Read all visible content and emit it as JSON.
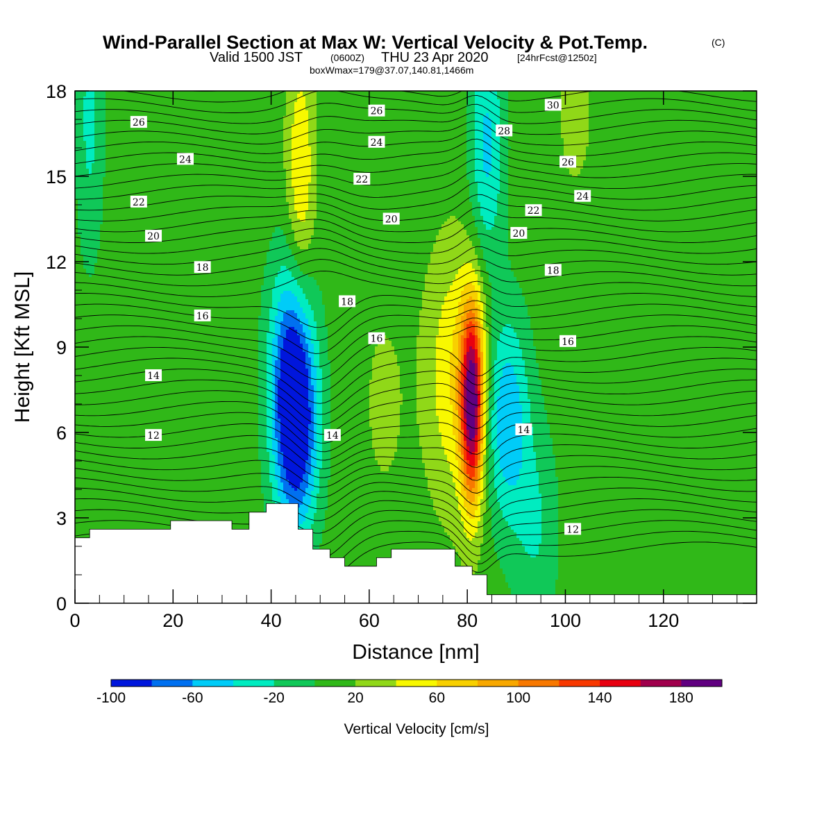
{
  "title": {
    "main": "Wind-Parallel Section at Max W: Vertical Velocity & Pot.Temp.",
    "copyright": "(C)",
    "valid_prefix": "Valid 1500 JST",
    "valid_utc": "(0600Z)",
    "valid_date": "THU 23 Apr 2020",
    "forecast": "[24hrFcst@1250z]",
    "boxwmax": "boxWmax=179@37.07,140.81,1466m"
  },
  "colorbar": {
    "label": "Vertical Velocity [cm/s]",
    "levels": [
      -100,
      -80,
      -60,
      -40,
      -20,
      0,
      20,
      40,
      60,
      80,
      100,
      120,
      140,
      160,
      180,
      200
    ],
    "tick_labels": [
      "-100",
      "-60",
      "-20",
      "20",
      "60",
      "100",
      "140",
      "180"
    ],
    "colors": [
      "#0016dc",
      "#0070f0",
      "#00ccf8",
      "#00ecc0",
      "#10c858",
      "#30b818",
      "#90d818",
      "#f8f800",
      "#f8d000",
      "#f8a800",
      "#f87800",
      "#f83800",
      "#e80010",
      "#a0004c",
      "#600080"
    ]
  },
  "chart_data": {
    "type": "heatmap",
    "title": "Wind-Parallel Section at Max W: Vertical Velocity & Pot.Temp.",
    "xlabel": "Distance [nm]",
    "ylabel": "Height [Kft MSL]",
    "xlim": [
      0,
      139
    ],
    "ylim": [
      0,
      18
    ],
    "x_ticks": [
      0,
      20,
      40,
      60,
      80,
      100,
      120
    ],
    "y_ticks": [
      0,
      3,
      6,
      9,
      12,
      15,
      18
    ],
    "background_w": 10,
    "max_w": 179,
    "w_features": [
      {
        "kind": "updraft",
        "x": 81,
        "y": 7,
        "w": 179
      },
      {
        "kind": "updraft_plume",
        "x": 78,
        "y": 8,
        "w": 60
      },
      {
        "kind": "downdraft",
        "x": 45,
        "y": 6,
        "w": -100
      },
      {
        "kind": "downdraft",
        "x": 44,
        "y": 9,
        "w": -50
      },
      {
        "kind": "downdraft",
        "x": 88,
        "y": 6.5,
        "w": -60
      },
      {
        "kind": "downdraft",
        "x": 84,
        "y": 16,
        "w": -45
      },
      {
        "kind": "updraft",
        "x": 46,
        "y": 15,
        "w": 60
      },
      {
        "kind": "updraft",
        "x": 63,
        "y": 7,
        "w": 25
      },
      {
        "kind": "updraft",
        "x": 102,
        "y": 17.3,
        "w": 25
      },
      {
        "kind": "downdraft",
        "x": 3,
        "y": 17,
        "w": -25
      },
      {
        "kind": "downdraft",
        "x": 94,
        "y": 2.6,
        "w": -20
      }
    ],
    "terrain": [
      {
        "x": 0,
        "y": 2.3
      },
      {
        "x": 3,
        "y": 2.6
      },
      {
        "x": 19.5,
        "y": 2.9
      },
      {
        "x": 32,
        "y": 2.6
      },
      {
        "x": 35.5,
        "y": 3.2
      },
      {
        "x": 39,
        "y": 3.5
      },
      {
        "x": 45.5,
        "y": 2.6
      },
      {
        "x": 48.5,
        "y": 1.9
      },
      {
        "x": 52,
        "y": 1.6
      },
      {
        "x": 55,
        "y": 1.3
      },
      {
        "x": 61.5,
        "y": 1.6
      },
      {
        "x": 64.5,
        "y": 1.9
      },
      {
        "x": 77.5,
        "y": 1.3
      },
      {
        "x": 81,
        "y": 1.0
      },
      {
        "x": 84,
        "y": 0.3
      },
      {
        "x": 139,
        "y": 0.3
      }
    ],
    "theta_labels": [
      {
        "text": "12",
        "x": 16,
        "y": 5.9
      },
      {
        "text": "14",
        "x": 16,
        "y": 8.0
      },
      {
        "text": "16",
        "x": 26,
        "y": 10.1
      },
      {
        "text": "18",
        "x": 26,
        "y": 11.8
      },
      {
        "text": "20",
        "x": 16,
        "y": 12.9
      },
      {
        "text": "22",
        "x": 13,
        "y": 14.1
      },
      {
        "text": "24",
        "x": 22.5,
        "y": 15.6
      },
      {
        "text": "26",
        "x": 13,
        "y": 16.9
      },
      {
        "text": "14",
        "x": 52.5,
        "y": 5.9
      },
      {
        "text": "16",
        "x": 61.5,
        "y": 9.3
      },
      {
        "text": "18",
        "x": 55.5,
        "y": 10.6
      },
      {
        "text": "20",
        "x": 64.5,
        "y": 13.5
      },
      {
        "text": "22",
        "x": 58.5,
        "y": 14.9
      },
      {
        "text": "24",
        "x": 61.5,
        "y": 16.2
      },
      {
        "text": "26",
        "x": 61.5,
        "y": 17.3
      },
      {
        "text": "14",
        "x": 91.5,
        "y": 6.1
      },
      {
        "text": "16",
        "x": 100.5,
        "y": 9.2
      },
      {
        "text": "18",
        "x": 97.5,
        "y": 11.7
      },
      {
        "text": "20",
        "x": 90.5,
        "y": 13.0
      },
      {
        "text": "22",
        "x": 93.5,
        "y": 13.8
      },
      {
        "text": "24",
        "x": 103.5,
        "y": 14.3
      },
      {
        "text": "26",
        "x": 100.5,
        "y": 15.5
      },
      {
        "text": "28",
        "x": 87.5,
        "y": 16.6
      },
      {
        "text": "30",
        "x": 97.5,
        "y": 17.5
      },
      {
        "text": "12",
        "x": 101.5,
        "y": 2.6
      }
    ]
  }
}
